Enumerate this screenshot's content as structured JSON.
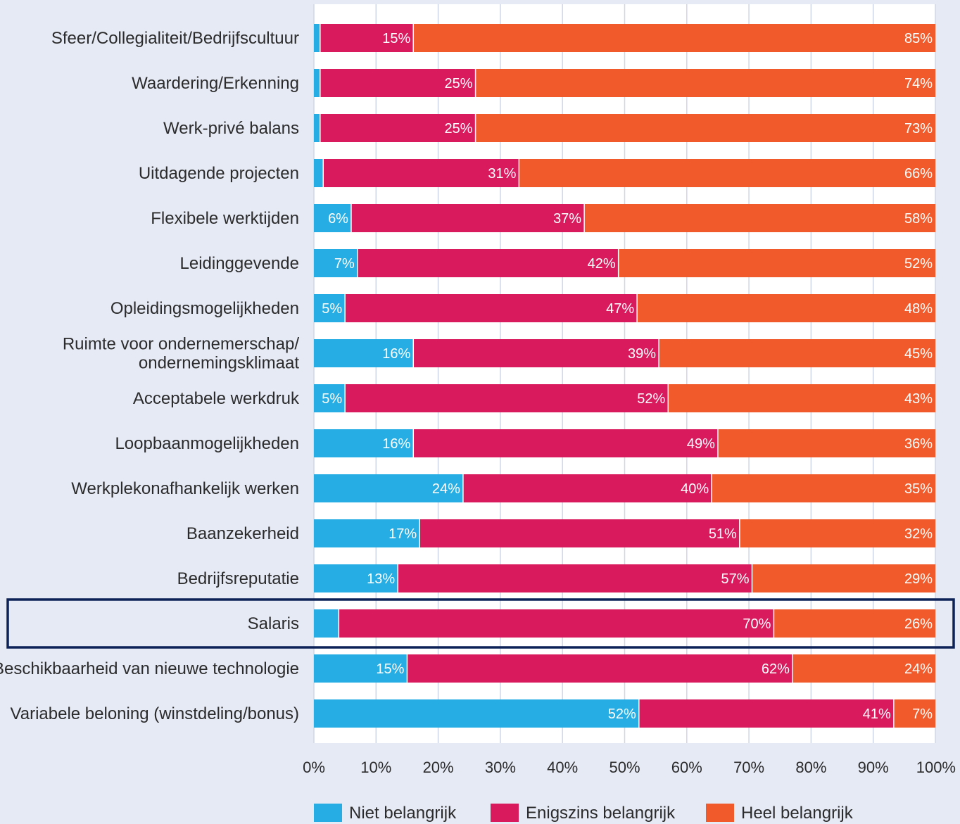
{
  "chart_data": {
    "type": "bar",
    "orientation": "horizontal",
    "stacked": true,
    "categories": [
      "Sfeer/Collegialiteit/Bedrijfscultuur",
      "Waardering/Erkenning",
      "Werk-privé balans",
      "Uitdagende projecten",
      "Flexibele werktijden",
      "Leidinggevende",
      "Opleidingsmogelijkheden",
      "Ruimte voor ondernemerschap/ ondernemingsklimaat",
      "Acceptabele werkdruk",
      "Loopbaanmogelijkheden",
      "Werkplekonafhankelijk werken",
      "Baanzekerheid",
      "Bedrijfsreputatie",
      "Salaris",
      "Beschikbaarheid van nieuwe technologie",
      "Variabele beloning (winstdeling/bonus)"
    ],
    "category_lines": [
      [
        "Sfeer/Collegialiteit/Bedrijfscultuur"
      ],
      [
        "Waardering/Erkenning"
      ],
      [
        "Werk-privé balans"
      ],
      [
        "Uitdagende projecten"
      ],
      [
        "Flexibele werktijden"
      ],
      [
        "Leidinggevende"
      ],
      [
        "Opleidingsmogelijkheden"
      ],
      [
        "Ruimte voor ondernemerschap/",
        "ondernemingsklimaat"
      ],
      [
        "Acceptabele werkdruk"
      ],
      [
        "Loopbaanmogelijkheden"
      ],
      [
        "Werkplekonafhankelijk werken"
      ],
      [
        "Baanzekerheid"
      ],
      [
        "Bedrijfsreputatie"
      ],
      [
        "Salaris"
      ],
      [
        "Beschikbaarheid van nieuwe technologie"
      ],
      [
        "Variabele beloning (winstdeling/bonus)"
      ]
    ],
    "series": [
      {
        "name": "Niet belangrijk",
        "color": "#26aee4",
        "values": [
          1,
          1,
          1,
          2,
          6,
          7,
          5,
          16,
          5,
          16,
          24,
          17,
          13,
          4,
          15,
          52
        ]
      },
      {
        "name": "Enigszins belangrijk",
        "color": "#d91a5d",
        "values": [
          15,
          25,
          25,
          31,
          37,
          42,
          47,
          39,
          52,
          49,
          40,
          51,
          57,
          70,
          62,
          41
        ]
      },
      {
        "name": "Heel belangrijk",
        "color": "#f15a2b",
        "values": [
          85,
          74,
          73,
          66,
          58,
          52,
          48,
          45,
          43,
          36,
          35,
          32,
          29,
          26,
          24,
          7
        ]
      }
    ],
    "drawn_widths": [
      [
        1,
        15,
        84
      ],
      [
        1,
        25,
        74
      ],
      [
        1,
        25,
        74
      ],
      [
        1.5,
        31.5,
        67
      ],
      [
        6,
        37.5,
        56.5
      ],
      [
        7,
        42,
        51
      ],
      [
        5,
        47,
        48
      ],
      [
        16,
        39.5,
        44.5
      ],
      [
        5,
        52,
        43
      ],
      [
        16,
        49,
        35
      ],
      [
        24,
        40,
        36
      ],
      [
        17,
        51.5,
        31.5
      ],
      [
        13.5,
        57,
        29.5
      ],
      [
        4,
        70,
        26
      ],
      [
        15,
        62,
        23
      ],
      [
        52.3,
        41,
        6.7
      ]
    ],
    "label_anchor": [
      [
        "start",
        "end",
        "end"
      ],
      [
        "start",
        "end",
        "end"
      ],
      [
        "start",
        "end",
        "end"
      ],
      [
        "start",
        "end",
        "end"
      ],
      [
        "end",
        "end",
        "end"
      ],
      [
        "end",
        "end",
        "end"
      ],
      [
        "end",
        "end",
        "end"
      ],
      [
        "end",
        "end",
        "end"
      ],
      [
        "end",
        "end",
        "end"
      ],
      [
        "end",
        "end",
        "end"
      ],
      [
        "end",
        "end",
        "end"
      ],
      [
        "end",
        "end",
        "end"
      ],
      [
        "end",
        "end",
        "end"
      ],
      [
        "start",
        "end",
        "end"
      ],
      [
        "end",
        "end",
        "end"
      ],
      [
        "end",
        "end",
        "end"
      ]
    ],
    "value_suffix": "%",
    "xlim": [
      0,
      100
    ],
    "x_ticks": [
      "0%",
      "10%",
      "20%",
      "30%",
      "40%",
      "50%",
      "60%",
      "70%",
      "80%",
      "90%",
      "100%"
    ],
    "highlight_category": "Salaris",
    "highlight_color": "#0d2358",
    "grid": true,
    "legend_position": "bottom"
  }
}
